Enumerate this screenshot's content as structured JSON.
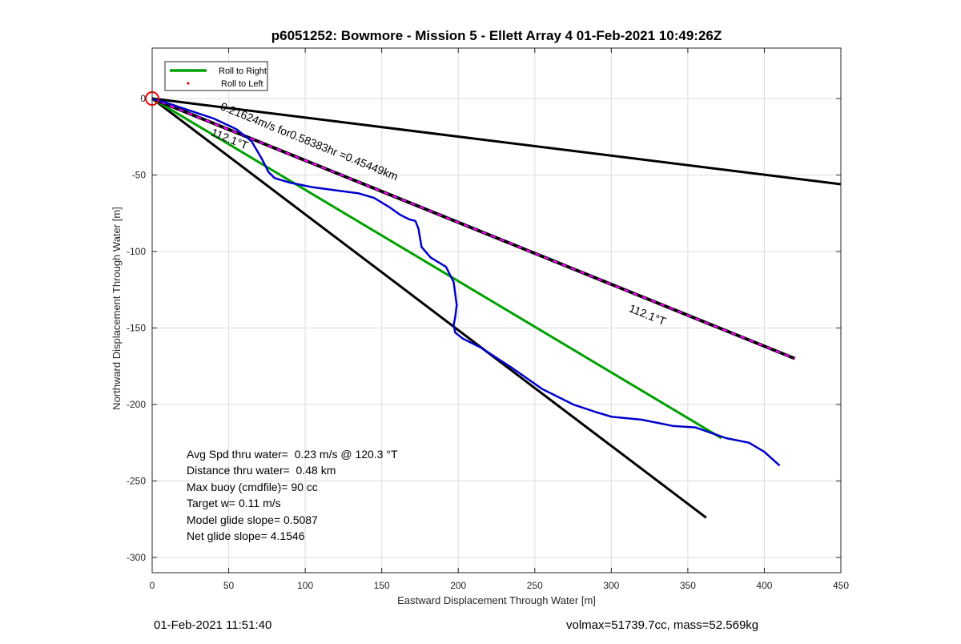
{
  "chart_data": {
    "type": "line",
    "title": "p6051252: Bowmore - Mission 5 - Ellett Array 4 01-Feb-2021 10:49:26Z",
    "xlabel": "Eastward Displacement Through Water [m]",
    "ylabel": "Northward Displacement Through Water [m]",
    "xlim": [
      0,
      450
    ],
    "ylim": [
      -310,
      33
    ],
    "xticks": [
      0,
      50,
      100,
      150,
      200,
      250,
      300,
      350,
      400,
      450
    ],
    "yticks": [
      0,
      -50,
      -100,
      -150,
      -200,
      -250,
      -300
    ],
    "grid": true,
    "legend_position": "top-left",
    "legend": [
      {
        "label": "Roll to Right",
        "color": "#00a000",
        "marker": "line"
      },
      {
        "label": "Roll to Left",
        "color": "#ff0000",
        "marker": "dot"
      }
    ],
    "series": [
      {
        "role": "glider-track",
        "color": "#0000cc",
        "x": [
          0,
          10,
          25,
          40,
          55,
          65,
          72,
          76,
          80,
          90,
          105,
          120,
          135,
          145,
          155,
          162,
          168,
          172,
          174,
          176,
          182,
          192,
          197,
          199,
          198,
          197,
          198,
          203,
          215,
          235,
          255,
          275,
          290,
          300,
          320,
          340,
          355,
          375,
          390,
          400,
          410
        ],
        "y": [
          0,
          -3,
          -8,
          -13,
          -20,
          -28,
          -40,
          -48,
          -52,
          -55,
          -58,
          -60,
          -62,
          -65,
          -71,
          -76,
          -79,
          -80,
          -85,
          -97,
          -104,
          -110,
          -120,
          -135,
          -143,
          -148,
          -153,
          -157,
          -163,
          -176,
          -190,
          -200,
          -205,
          -208,
          -210,
          -214,
          -215,
          -222,
          -225,
          -231,
          -240
        ]
      },
      {
        "role": "roll-to-right",
        "color": "#00a000",
        "x": [
          0,
          372
        ],
        "y": [
          0,
          -222
        ]
      },
      {
        "role": "reference-upper",
        "color": "#000000",
        "x": [
          0,
          450
        ],
        "y": [
          0,
          -56
        ]
      },
      {
        "role": "reference-lower",
        "color": "#000000",
        "x": [
          0,
          362
        ],
        "y": [
          0,
          -274
        ]
      },
      {
        "role": "current-vector",
        "color": "#000000",
        "dash_color": "#ff00ff",
        "x": [
          0,
          420
        ],
        "y": [
          0,
          -170
        ]
      }
    ],
    "markers": [
      {
        "role": "start-circle",
        "x": 0,
        "y": 0,
        "color": "#ff0000"
      }
    ],
    "annotations": [
      {
        "text": "0.21624m/s for0.58383hr =0.45449km",
        "x": 44,
        "y": -7,
        "angle": 22
      },
      {
        "text": "112.1°T",
        "x": 38,
        "y": -24,
        "angle": 22
      },
      {
        "text": "112.1°T",
        "x": 311,
        "y": -139,
        "angle": 22
      }
    ],
    "stats": [
      "Avg Spd thru water=  0.23 m/s @ 120.3 °T",
      "Distance thru water=  0.48 km",
      "Max buoy (cmdfile)= 90 cc",
      "Target w= 0.11 m/s",
      "Model glide slope= 0.5087",
      "Net glide slope= 4.1546"
    ],
    "footer_left": "01-Feb-2021 11:51:40",
    "footer_right": "volmax=51739.7cc, mass=52.569kg"
  }
}
